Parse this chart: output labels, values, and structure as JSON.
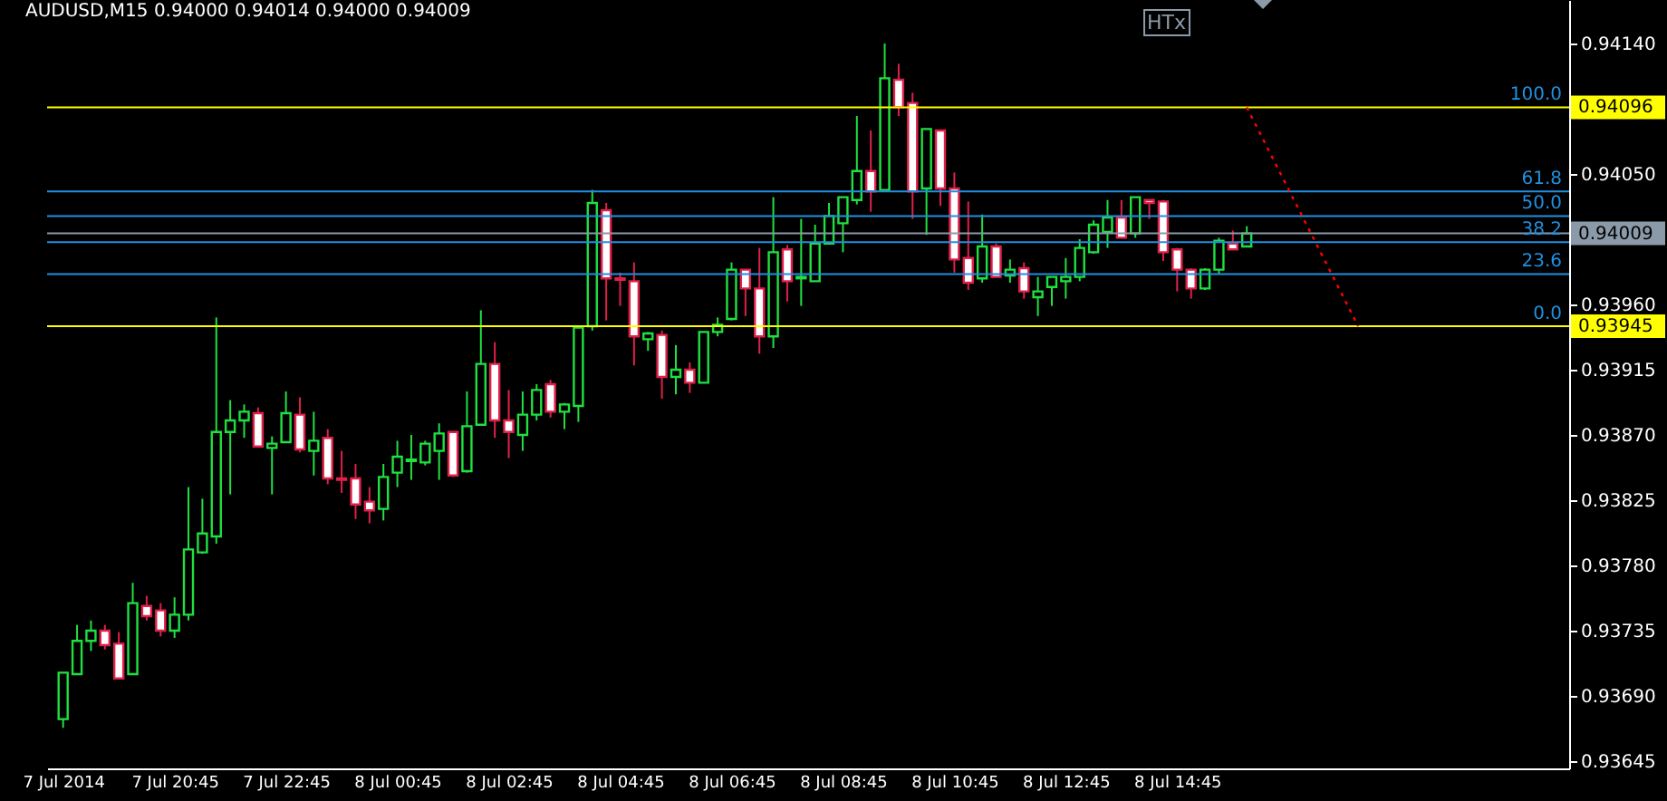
{
  "chart_data": {
    "type": "candlestick",
    "title": "AUDUSD,M15 0.94000 0.94014 0.94000 0.94009",
    "categories": [
      "7 Jul 2014",
      null,
      null,
      null,
      null,
      null,
      null,
      null,
      "7 Jul 20:45",
      null,
      null,
      null,
      null,
      null,
      null,
      null,
      "7 Jul 22:45",
      null,
      null,
      null,
      null,
      null,
      null,
      null,
      "8 Jul 00:45",
      null,
      null,
      null,
      null,
      null,
      null,
      null,
      "8 Jul 02:45",
      null,
      null,
      null,
      null,
      null,
      null,
      null,
      "8 Jul 04:45",
      null,
      null,
      null,
      null,
      null,
      null,
      null,
      "8 Jul 06:45",
      null,
      null,
      null,
      null,
      null,
      null,
      null,
      "8 Jul 08:45",
      null,
      null,
      null,
      null,
      null,
      null,
      null,
      "8 Jul 10:45",
      null,
      null,
      null,
      null,
      null,
      null,
      null,
      "8 Jul 12:45",
      null,
      null,
      null,
      null,
      null,
      null,
      null,
      "8 Jul 14:45",
      null,
      null,
      null,
      null,
      null,
      null,
      null,
      null,
      null,
      null,
      null,
      null,
      null,
      null,
      null,
      null,
      null,
      null,
      null,
      null,
      null,
      null,
      null,
      null,
      null,
      null,
      null
    ],
    "ohlc": [
      [
        0.93674,
        0.93706,
        0.93668,
        0.93706
      ],
      [
        0.93705,
        0.93739,
        0.93705,
        0.93728
      ],
      [
        0.93728,
        0.93742,
        0.93721,
        0.93735
      ],
      [
        0.93735,
        0.93739,
        0.93722,
        0.93725
      ],
      [
        0.93726,
        0.93734,
        0.93702,
        0.93702
      ],
      [
        0.93705,
        0.93768,
        0.93705,
        0.93754
      ],
      [
        0.93752,
        0.93759,
        0.93742,
        0.93745
      ],
      [
        0.93749,
        0.93754,
        0.93731,
        0.93735
      ],
      [
        0.93735,
        0.93758,
        0.9373,
        0.93746
      ],
      [
        0.93746,
        0.93834,
        0.93742,
        0.93791
      ],
      [
        0.93789,
        0.93826,
        0.93788,
        0.93802
      ],
      [
        0.938,
        0.93951,
        0.93795,
        0.93872
      ],
      [
        0.93872,
        0.93894,
        0.93829,
        0.9388
      ],
      [
        0.9388,
        0.93891,
        0.93868,
        0.93886
      ],
      [
        0.93885,
        0.93889,
        0.93862,
        0.93862
      ],
      [
        0.93861,
        0.93869,
        0.93829,
        0.93864
      ],
      [
        0.93865,
        0.939,
        0.93865,
        0.93885
      ],
      [
        0.93884,
        0.93896,
        0.93858,
        0.9386
      ],
      [
        0.93859,
        0.93886,
        0.93842,
        0.93866
      ],
      [
        0.93868,
        0.93874,
        0.93836,
        0.9384
      ],
      [
        0.9384,
        0.93859,
        0.9383,
        0.93839
      ],
      [
        0.9384,
        0.9385,
        0.93812,
        0.93822
      ],
      [
        0.93824,
        0.93834,
        0.93809,
        0.93818
      ],
      [
        0.93819,
        0.9385,
        0.93811,
        0.93841
      ],
      [
        0.93844,
        0.93866,
        0.93834,
        0.93855
      ],
      [
        0.93852,
        0.9387,
        0.93839,
        0.93853
      ],
      [
        0.93851,
        0.93866,
        0.93849,
        0.93864
      ],
      [
        0.93859,
        0.93878,
        0.93839,
        0.93871
      ],
      [
        0.93872,
        0.93872,
        0.93841,
        0.93842
      ],
      [
        0.93845,
        0.939,
        0.93844,
        0.93876
      ],
      [
        0.93877,
        0.93956,
        0.93877,
        0.93919
      ],
      [
        0.93919,
        0.93934,
        0.93868,
        0.9388
      ],
      [
        0.9388,
        0.93901,
        0.93854,
        0.93872
      ],
      [
        0.9387,
        0.939,
        0.93859,
        0.93884
      ],
      [
        0.93884,
        0.93905,
        0.9388,
        0.93901
      ],
      [
        0.93905,
        0.93908,
        0.93882,
        0.93886
      ],
      [
        0.93886,
        0.93892,
        0.93874,
        0.93891
      ],
      [
        0.9389,
        0.93944,
        0.93879,
        0.93944
      ],
      [
        0.93945,
        0.94039,
        0.93942,
        0.9403
      ],
      [
        0.94025,
        0.9403,
        0.93949,
        0.93978
      ],
      [
        0.93978,
        0.93982,
        0.93959,
        0.93977
      ],
      [
        0.93976,
        0.93989,
        0.93918,
        0.93938
      ],
      [
        0.93936,
        0.93941,
        0.93928,
        0.9394
      ],
      [
        0.93939,
        0.93942,
        0.93895,
        0.9391
      ],
      [
        0.9391,
        0.93932,
        0.93898,
        0.93915
      ],
      [
        0.93915,
        0.9392,
        0.93899,
        0.93906
      ],
      [
        0.93906,
        0.93941,
        0.93906,
        0.93941
      ],
      [
        0.93941,
        0.93951,
        0.93938,
        0.93946
      ],
      [
        0.9395,
        0.93989,
        0.93949,
        0.93984
      ],
      [
        0.93984,
        0.93984,
        0.93952,
        0.93971
      ],
      [
        0.93971,
        0.93999,
        0.93926,
        0.93938
      ],
      [
        0.93938,
        0.94034,
        0.9393,
        0.93996
      ],
      [
        0.93998,
        0.94001,
        0.93962,
        0.93976
      ],
      [
        0.93978,
        0.94019,
        0.93959,
        0.93979
      ],
      [
        0.93976,
        0.94015,
        0.93976,
        0.94002
      ],
      [
        0.94002,
        0.9403,
        0.94002,
        0.94021
      ],
      [
        0.94016,
        0.94034,
        0.93996,
        0.94034
      ],
      [
        0.94032,
        0.9409,
        0.94029,
        0.94052
      ],
      [
        0.94052,
        0.9408,
        0.94024,
        0.94038
      ],
      [
        0.94039,
        0.9414,
        0.94039,
        0.94116
      ],
      [
        0.94115,
        0.94126,
        0.9409,
        0.94096
      ],
      [
        0.94099,
        0.94106,
        0.94019,
        0.94038
      ],
      [
        0.9404,
        0.94081,
        0.94008,
        0.94081
      ],
      [
        0.9408,
        0.9408,
        0.94028,
        0.9404
      ],
      [
        0.9404,
        0.94051,
        0.93982,
        0.93991
      ],
      [
        0.93992,
        0.94031,
        0.9397,
        0.93975
      ],
      [
        0.93978,
        0.94022,
        0.93975,
        0.94
      ],
      [
        0.94,
        0.94002,
        0.93979,
        0.93979
      ],
      [
        0.9398,
        0.93991,
        0.93975,
        0.93984
      ],
      [
        0.93985,
        0.93989,
        0.93964,
        0.93969
      ],
      [
        0.93965,
        0.93979,
        0.93952,
        0.93969
      ],
      [
        0.93972,
        0.93979,
        0.93959,
        0.93979
      ],
      [
        0.93976,
        0.93992,
        0.93964,
        0.93979
      ],
      [
        0.93979,
        0.94005,
        0.93976,
        0.93999
      ],
      [
        0.93996,
        0.94018,
        0.93995,
        0.94015
      ],
      [
        0.9401,
        0.94032,
        0.93999,
        0.9402
      ],
      [
        0.9402,
        0.94032,
        0.94006,
        0.94006
      ],
      [
        0.94009,
        0.94034,
        0.94006,
        0.94034
      ],
      [
        0.94032,
        0.94032,
        0.94019,
        0.9403
      ],
      [
        0.94031,
        0.94032,
        0.9399,
        0.93996
      ],
      [
        0.93998,
        0.93999,
        0.93969,
        0.93984
      ],
      [
        0.93984,
        0.93985,
        0.93964,
        0.93971
      ],
      [
        0.93971,
        0.93985,
        0.9397,
        0.93984
      ],
      [
        0.93984,
        0.94006,
        0.93981,
        0.94004
      ],
      [
        0.94002,
        0.94011,
        0.93998,
        0.93998
      ],
      [
        0.94,
        0.94014,
        0.94,
        0.94009
      ],
      null,
      null,
      null,
      null,
      null,
      null,
      null,
      null,
      null,
      null,
      null,
      null,
      null,
      null,
      null,
      null,
      null,
      null,
      null,
      null,
      null,
      null
    ],
    "colors": [
      "#20e040",
      "#20e040",
      "#20e040",
      "#e0204a",
      "#e0204a",
      "#20e040",
      "#e0204a",
      "#e0204a",
      "#20e040",
      "#20e040",
      "#20e040",
      "#20e040",
      "#20e040",
      "#20e040",
      "#e0204a",
      "#20e040",
      "#20e040",
      "#e0204a",
      "#20e040",
      "#e0204a",
      "#e0204a",
      "#e0204a",
      "#e0204a",
      "#20e040",
      "#20e040",
      "#20e040",
      "#20e040",
      "#20e040",
      "#e0204a",
      "#20e040",
      "#20e040",
      "#e0204a",
      "#e0204a",
      "#20e040",
      "#20e040",
      "#e0204a",
      "#20e040",
      "#20e040",
      "#20e040",
      "#e0204a",
      "#e0204a",
      "#e0204a",
      "#20e040",
      "#e0204a",
      "#20e040",
      "#e0204a",
      "#20e040",
      "#20e040",
      "#20e040",
      "#e0204a",
      "#e0204a",
      "#20e040",
      "#e0204a",
      "#20e040",
      "#20e040",
      "#20e040",
      "#20e040",
      "#20e040",
      "#e0204a",
      "#20e040",
      "#e0204a",
      "#e0204a",
      "#20e040",
      "#e0204a",
      "#e0204a",
      "#e0204a",
      "#20e040",
      "#e0204a",
      "#20e040",
      "#e0204a",
      "#20e040",
      "#20e040",
      "#20e040",
      "#20e040",
      "#20e040",
      "#20e040",
      "#e0204a",
      "#20e040",
      "#e0204a",
      "#e0204a",
      "#e0204a",
      "#e0204a",
      "#20e040",
      "#20e040",
      "#e0204a",
      "#20e040",
      null,
      null,
      null,
      null,
      null,
      null,
      null,
      null,
      null,
      null,
      null,
      null,
      null,
      null,
      null,
      null,
      null,
      null,
      null,
      null,
      null,
      null
    ],
    "series": [
      {
        "type": "line",
        "values": [
          null,
          null,
          null,
          null,
          null,
          null,
          null,
          null,
          null,
          null,
          null,
          null,
          null,
          null,
          null,
          null,
          null,
          null,
          null,
          null,
          null,
          null,
          null,
          null,
          null,
          null,
          null,
          null,
          null,
          null,
          null,
          null,
          null,
          null,
          null,
          null,
          null,
          null,
          null,
          null,
          null,
          null,
          null,
          null,
          null,
          null,
          null,
          null,
          null,
          null,
          null,
          null,
          null,
          null,
          null,
          null,
          null,
          null,
          null,
          null,
          null,
          null,
          null,
          null,
          null,
          null,
          null,
          null,
          null,
          null,
          null,
          null,
          null,
          null,
          null,
          null,
          null,
          null,
          null,
          null,
          null,
          null,
          null,
          null,
          null,
          0.94096,
          null,
          null,
          null,
          null,
          null,
          null,
          null,
          0.93945,
          null,
          null,
          null,
          null,
          null,
          null,
          null,
          null,
          null,
          null,
          null,
          null,
          null,
          null
        ],
        "color": "#ff0000",
        "line_style": "dotted"
      }
    ],
    "ylim": [
      0.9364,
      0.9417
    ],
    "yticks": [
      {
        "value": 0.9414,
        "label": "0.94140"
      },
      {
        "value": 0.9405,
        "label": "0.94050"
      },
      {
        "value": 0.9396,
        "label": "0.93960"
      },
      {
        "value": 0.93915,
        "label": "0.93915"
      },
      {
        "value": 0.9387,
        "label": "0.93870"
      },
      {
        "value": 0.93825,
        "label": "0.93825"
      },
      {
        "value": 0.9378,
        "label": "0.93780"
      },
      {
        "value": 0.93735,
        "label": "0.93735"
      },
      {
        "value": 0.9369,
        "label": "0.93690"
      },
      {
        "value": 0.93645,
        "label": "0.93645"
      }
    ],
    "ref_lines": [
      {
        "axis": "y",
        "value": 0.94096,
        "label": "0.94096",
        "color": "#ffff00"
      },
      {
        "axis": "y",
        "value": 0.93945,
        "label": "0.93945",
        "color": "#ffff00"
      },
      {
        "axis": "y",
        "value": 0.94009,
        "label": "0.94009",
        "color": "#8a9aa8"
      },
      {
        "axis": "y",
        "value": 0.94038,
        "color": "#2090e0"
      },
      {
        "axis": "y",
        "value": 0.94021,
        "color": "#2090e0"
      },
      {
        "axis": "y",
        "value": 0.94003,
        "color": "#2090e0"
      },
      {
        "axis": "y",
        "value": 0.93981,
        "color": "#2090e0"
      }
    ],
    "annotations": [
      "HTx",
      {
        "text": "100.0",
        "y": 0.94096
      },
      {
        "text": "61.8",
        "y": 0.94038
      },
      {
        "text": "50.0",
        "y": 0.94021
      },
      {
        "text": "38.2",
        "y": 0.94003
      },
      {
        "text": "23.6",
        "y": 0.93981
      },
      {
        "text": "0.0",
        "y": 0.93945
      }
    ],
    "grid": false
  }
}
